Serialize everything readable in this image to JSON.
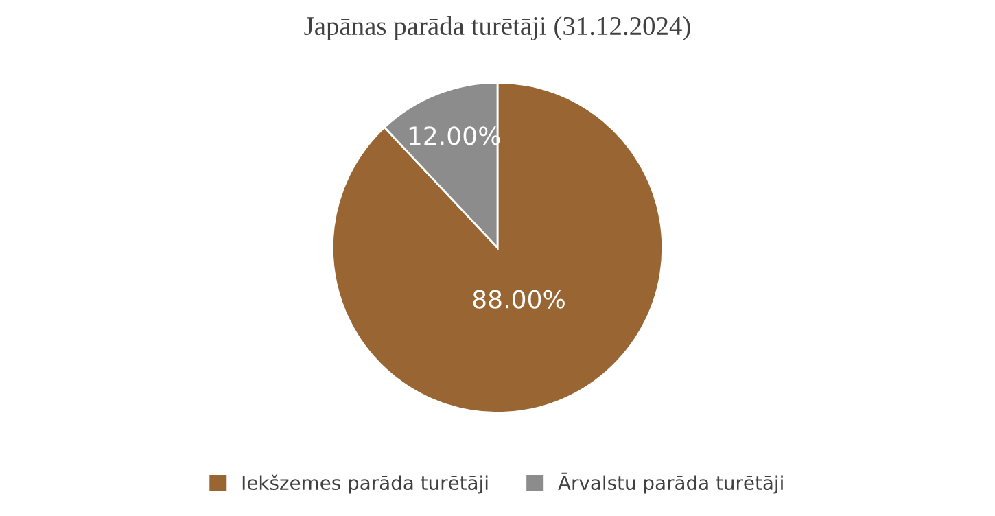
{
  "chart_data": {
    "type": "pie",
    "title": "Japānas parāda turētāji (31.12.2024)",
    "categories": [
      "Iekšzemes parāda turētāji",
      "Ārvalstu parāda turētāji"
    ],
    "values": [
      88,
      12
    ],
    "colors": [
      "#996633",
      "#8c8c8c"
    ],
    "value_labels": [
      "88.00%",
      "12.00%"
    ],
    "legend": "bottom"
  }
}
